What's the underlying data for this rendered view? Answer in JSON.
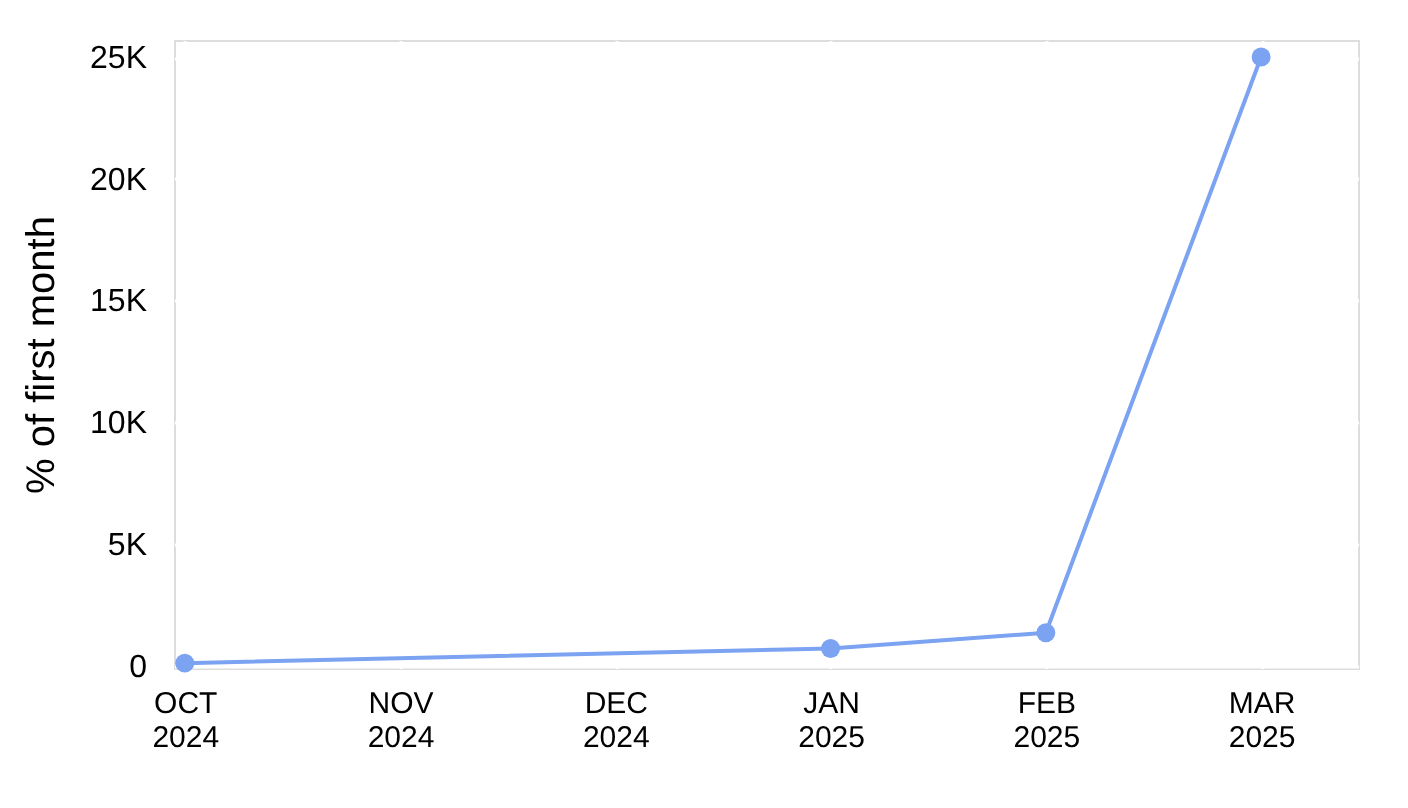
{
  "chart_data": {
    "type": "line",
    "ylabel": "% of first month",
    "categories": [
      "OCT 2024",
      "NOV 2024",
      "DEC 2024",
      "JAN 2025",
      "FEB 2025",
      "MAR 2025"
    ],
    "series": [
      {
        "color": "#7ba3f2",
        "values": [
          100,
          null,
          null,
          700,
          1350,
          25000
        ]
      }
    ],
    "ylim": [
      -100,
      25700
    ],
    "yticks": [
      0,
      {
        "value": 5000,
        "label": "5K"
      },
      {
        "value": 10000,
        "label": "10K"
      },
      {
        "value": 15000,
        "label": "15K"
      },
      {
        "value": 20000,
        "label": "20K"
      },
      {
        "value": 25000,
        "label": "25K"
      }
    ],
    "grid": true,
    "marker": "circle",
    "line_style": "solid"
  }
}
